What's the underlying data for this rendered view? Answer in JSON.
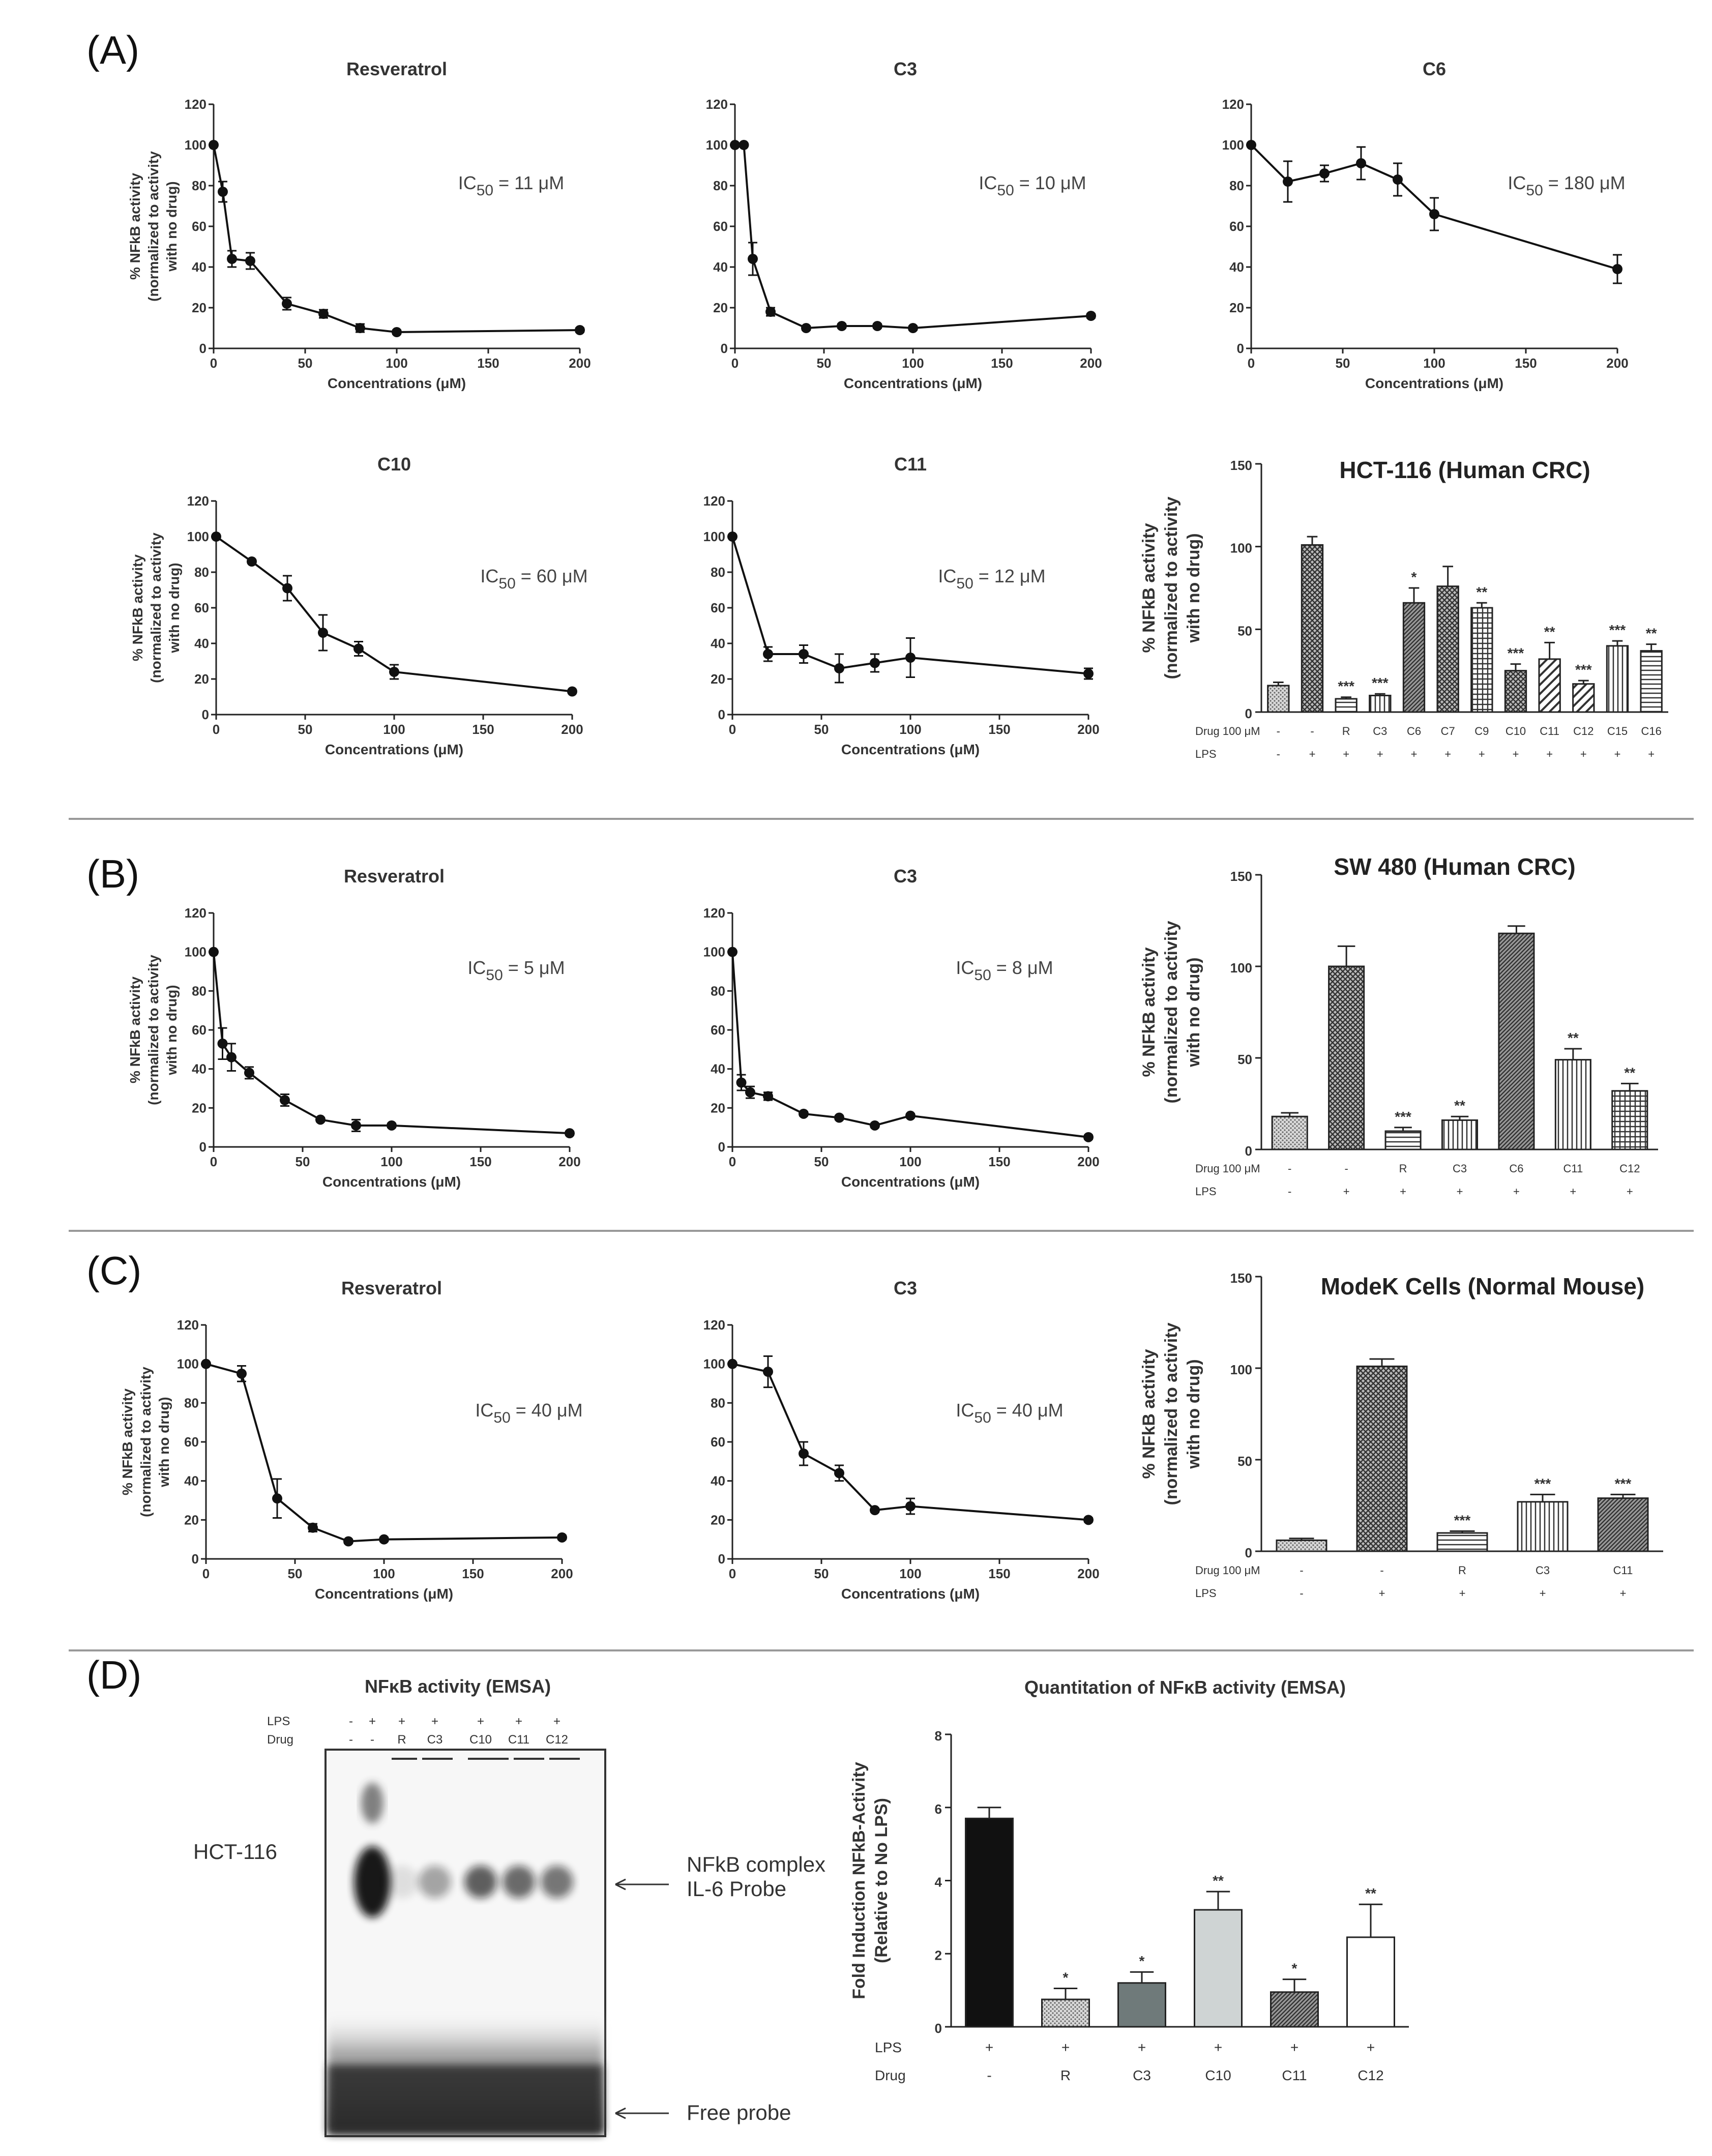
{
  "panels": {
    "A": "(A)",
    "B": "(B)",
    "C": "(C)",
    "D": "(D)"
  },
  "chart_data": [
    {
      "id": "A1",
      "type": "line",
      "title": "Resveratrol",
      "ic50": "IC50 = 11 μM",
      "xlabel": "Concentrations (μM)",
      "ylabel": [
        "% NFkB activity",
        "(normalized to activity",
        "with no drug)"
      ],
      "xlim": [
        0,
        200
      ],
      "ylim": [
        0,
        120
      ],
      "xticks": [
        0,
        50,
        100,
        150,
        200
      ],
      "yticks": [
        0,
        20,
        40,
        60,
        80,
        100,
        120
      ],
      "x": [
        0,
        5,
        10,
        20,
        40,
        60,
        80,
        100,
        200
      ],
      "y": [
        100,
        77,
        44,
        43,
        22,
        17,
        10,
        8,
        9
      ],
      "err": [
        0,
        5,
        4,
        4,
        3,
        2,
        2,
        1,
        1
      ]
    },
    {
      "id": "A2",
      "type": "line",
      "title": "C3",
      "ic50": "IC50 = 10 μM",
      "xlabel": "Concentrations (μM)",
      "ylabel": [],
      "xlim": [
        0,
        200
      ],
      "ylim": [
        0,
        120
      ],
      "xticks": [
        0,
        50,
        100,
        150,
        200
      ],
      "yticks": [
        0,
        20,
        40,
        60,
        80,
        100,
        120
      ],
      "x": [
        0,
        5,
        10,
        20,
        40,
        60,
        80,
        100,
        200
      ],
      "y": [
        100,
        100,
        44,
        18,
        10,
        11,
        11,
        10,
        16
      ],
      "err": [
        0,
        0,
        8,
        2,
        1,
        1,
        1,
        1,
        1
      ]
    },
    {
      "id": "A3",
      "type": "line",
      "title": "C6",
      "ic50": "IC50 = 180 μM",
      "xlabel": "Concentrations (μM)",
      "ylabel": [],
      "xlim": [
        0,
        200
      ],
      "ylim": [
        0,
        120
      ],
      "xticks": [
        0,
        50,
        100,
        150,
        200
      ],
      "yticks": [
        0,
        20,
        40,
        60,
        80,
        100,
        120
      ],
      "x": [
        0,
        20,
        40,
        60,
        80,
        100,
        200
      ],
      "y": [
        100,
        82,
        86,
        91,
        83,
        66,
        39
      ],
      "err": [
        0,
        10,
        4,
        8,
        8,
        8,
        7
      ]
    },
    {
      "id": "A4",
      "type": "line",
      "title": "C10",
      "ic50": "IC50 = 60 μM",
      "xlabel": "Concentrations (μM)",
      "ylabel": [
        "% NFkB activity",
        "(normalized to activity",
        "with no drug)"
      ],
      "xlim": [
        0,
        200
      ],
      "ylim": [
        0,
        120
      ],
      "xticks": [
        0,
        50,
        100,
        150,
        200
      ],
      "yticks": [
        0,
        20,
        40,
        60,
        80,
        100,
        120
      ],
      "x": [
        0,
        20,
        40,
        60,
        80,
        100,
        200
      ],
      "y": [
        100,
        86,
        71,
        46,
        37,
        24,
        13
      ],
      "err": [
        0,
        1,
        7,
        10,
        4,
        4,
        1
      ]
    },
    {
      "id": "A5",
      "type": "line",
      "title": "C11",
      "ic50": "IC50 = 12 μM",
      "xlabel": "Concentrations (μM)",
      "ylabel": [],
      "xlim": [
        0,
        200
      ],
      "ylim": [
        0,
        120
      ],
      "xticks": [
        0,
        50,
        100,
        150,
        200
      ],
      "yticks": [
        0,
        20,
        40,
        60,
        80,
        100,
        120
      ],
      "x": [
        0,
        20,
        40,
        60,
        80,
        100,
        200
      ],
      "y": [
        100,
        34,
        34,
        26,
        29,
        32,
        23
      ],
      "err": [
        0,
        4,
        5,
        8,
        5,
        11,
        3
      ]
    },
    {
      "id": "A6",
      "type": "bar",
      "title": "HCT-116 (Human CRC)",
      "ylabel": [
        "% NFkB activity",
        "(normalized to activity",
        "with no drug)"
      ],
      "ylim": [
        0,
        150
      ],
      "yticks": [
        0,
        50,
        100,
        150
      ],
      "row_labels": [
        "Drug 100 μM",
        "LPS"
      ],
      "categories": [
        "-",
        "-",
        "R",
        "C3",
        "C6",
        "C7",
        "C9",
        "C10",
        "C11",
        "C12",
        "C15",
        "C16"
      ],
      "lps": [
        "-",
        "+",
        "+",
        "+",
        "+",
        "+",
        "+",
        "+",
        "+",
        "+",
        "+",
        "+"
      ],
      "values": [
        16,
        101,
        8,
        10,
        66,
        76,
        63,
        25,
        32,
        17,
        40,
        37
      ],
      "err": [
        2,
        5,
        1,
        1,
        9,
        12,
        3,
        4,
        10,
        2,
        3,
        4
      ],
      "sig": [
        "",
        "",
        "***",
        "***",
        "*",
        "",
        "**",
        "***",
        "**",
        "***",
        "***",
        "**"
      ],
      "patterns": [
        "dots",
        "cross",
        "hlines",
        "vlines",
        "diagdense",
        "cross",
        "grid",
        "cross",
        "diag",
        "diag",
        "vlines",
        "hlines"
      ]
    },
    {
      "id": "B1",
      "type": "line",
      "title": "Resveratrol",
      "ic50": "IC50 = 5 μM",
      "xlabel": "Concentrations (μM)",
      "ylabel": [
        "% NFkB activity",
        "(normalized to activity",
        "with no drug)"
      ],
      "xlim": [
        0,
        200
      ],
      "ylim": [
        0,
        120
      ],
      "xticks": [
        0,
        50,
        100,
        150,
        200
      ],
      "yticks": [
        0,
        20,
        40,
        60,
        80,
        100,
        120
      ],
      "x": [
        0,
        5,
        10,
        20,
        40,
        60,
        80,
        100,
        200
      ],
      "y": [
        100,
        53,
        46,
        38,
        24,
        14,
        11,
        11,
        7
      ],
      "err": [
        0,
        8,
        7,
        3,
        3,
        1,
        3,
        1,
        1
      ]
    },
    {
      "id": "B2",
      "type": "line",
      "title": "C3",
      "ic50": "IC50 = 8 μM",
      "xlabel": "Concentrations (μM)",
      "ylabel": [],
      "xlim": [
        0,
        200
      ],
      "ylim": [
        0,
        120
      ],
      "xticks": [
        0,
        50,
        100,
        150,
        200
      ],
      "yticks": [
        0,
        20,
        40,
        60,
        80,
        100,
        120
      ],
      "x": [
        0,
        5,
        10,
        20,
        40,
        60,
        80,
        100,
        200
      ],
      "y": [
        100,
        33,
        28,
        26,
        17,
        15,
        11,
        16,
        5
      ],
      "err": [
        0,
        4,
        3,
        2,
        1,
        1,
        1,
        1,
        1
      ]
    },
    {
      "id": "B3",
      "type": "bar",
      "title": "SW 480 (Human CRC)",
      "ylabel": [
        "% NFkB activity",
        "(normalized to activity",
        "with no drug)"
      ],
      "ylim": [
        0,
        150
      ],
      "yticks": [
        0,
        50,
        100,
        150
      ],
      "row_labels": [
        "Drug 100 μM",
        "LPS"
      ],
      "categories": [
        "-",
        "-",
        "R",
        "C3",
        "C6",
        "C11",
        "C12"
      ],
      "lps": [
        "-",
        "+",
        "+",
        "+",
        "+",
        "+",
        "+"
      ],
      "values": [
        18,
        100,
        10,
        16,
        118,
        49,
        32
      ],
      "err": [
        2,
        11,
        2,
        2,
        4,
        6,
        4
      ],
      "sig": [
        "",
        "",
        "***",
        "**",
        "",
        "**",
        "**"
      ],
      "patterns": [
        "dots",
        "cross",
        "hlines",
        "vlines",
        "diagdense",
        "vlines",
        "grid"
      ]
    },
    {
      "id": "C1",
      "type": "line",
      "title": "Resveratrol",
      "ic50": "IC50 = 40 μM",
      "xlabel": "Concentrations (μM)",
      "ylabel": [
        "% NFkB activity",
        "(normalized to activity",
        "with no drug)"
      ],
      "xlim": [
        0,
        200
      ],
      "ylim": [
        0,
        120
      ],
      "xticks": [
        0,
        50,
        100,
        150,
        200
      ],
      "yticks": [
        0,
        20,
        40,
        60,
        80,
        100,
        120
      ],
      "x": [
        0,
        20,
        40,
        60,
        80,
        100,
        200
      ],
      "y": [
        100,
        95,
        31,
        16,
        9,
        10,
        11
      ],
      "err": [
        0,
        4,
        10,
        2,
        1,
        1,
        1
      ]
    },
    {
      "id": "C2",
      "type": "line",
      "title": "C3",
      "ic50": "IC50 = 40 μM",
      "xlabel": "Concentrations (μM)",
      "ylabel": [],
      "xlim": [
        0,
        200
      ],
      "ylim": [
        0,
        120
      ],
      "xticks": [
        0,
        50,
        100,
        150,
        200
      ],
      "yticks": [
        0,
        20,
        40,
        60,
        80,
        100,
        120
      ],
      "x": [
        0,
        20,
        40,
        60,
        80,
        100,
        200
      ],
      "y": [
        100,
        96,
        54,
        44,
        25,
        27,
        20
      ],
      "err": [
        0,
        8,
        6,
        4,
        1,
        4,
        1
      ]
    },
    {
      "id": "C3",
      "type": "bar",
      "title": "ModeK Cells (Normal Mouse)",
      "ylabel": [
        "% NFkB activity",
        "(normalized to activity",
        "with no drug)"
      ],
      "ylim": [
        0,
        150
      ],
      "yticks": [
        0,
        50,
        100,
        150
      ],
      "row_labels": [
        "Drug 100 μM",
        "LPS"
      ],
      "categories": [
        "-",
        "-",
        "R",
        "C3",
        "C11"
      ],
      "lps": [
        "-",
        "+",
        "+",
        "+",
        "+"
      ],
      "values": [
        6,
        101,
        10,
        27,
        29
      ],
      "err": [
        1,
        4,
        1,
        4,
        2
      ],
      "sig": [
        "",
        "",
        "***",
        "***",
        "***"
      ],
      "patterns": [
        "dots",
        "cross",
        "hlines",
        "vlines",
        "diagdense"
      ]
    },
    {
      "id": "D2",
      "type": "bar",
      "title": "Quantitation of NFκB activity (EMSA)",
      "ylabel": [
        "Fold Induction  NFkB-Activity",
        "(Relative to  No LPS)"
      ],
      "ylim": [
        0,
        8
      ],
      "yticks": [
        0,
        2,
        4,
        6,
        8
      ],
      "row_labels": [
        "LPS",
        "Drug"
      ],
      "categories": [
        "-",
        "R",
        "C3",
        "C10",
        "C11",
        "C12"
      ],
      "lps": [
        "+",
        "+",
        "+",
        "+",
        "+",
        "+"
      ],
      "values": [
        5.7,
        0.75,
        1.2,
        3.2,
        0.95,
        2.45
      ],
      "err": [
        0.3,
        0.3,
        0.3,
        0.5,
        0.35,
        0.9
      ],
      "sig": [
        "",
        "*",
        "*",
        "**",
        "*",
        "**"
      ],
      "patterns": [
        "black",
        "dots",
        "darkgray",
        "lightgray",
        "diagdense",
        "white"
      ]
    }
  ],
  "emsa": {
    "title": "NFκB activity (EMSA)",
    "row_labels": [
      "LPS",
      "Drug"
    ],
    "lps": [
      "-",
      "+",
      "+",
      "+",
      "+",
      "+",
      "+"
    ],
    "drug": [
      "-",
      "-",
      "R",
      "C3",
      "C10",
      "C11",
      "C12"
    ],
    "cell_label": "HCT-116",
    "complex_label_1": "NFkB complex",
    "complex_label_2": "IL-6 Probe",
    "free_label": "Free probe"
  }
}
